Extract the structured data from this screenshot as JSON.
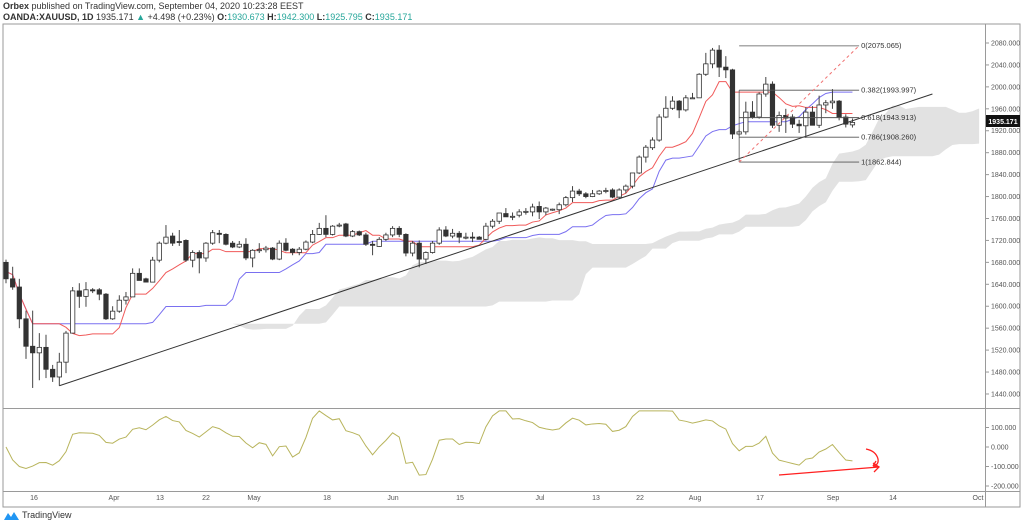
{
  "header": {
    "publisher": "Orbex",
    "published_text": "published on TradingView.com, September 04, 2020 10:23:28 EEST",
    "symbol": "OANDA:XAUUSD, 1D",
    "last": "1935.171",
    "change_arrow": "▲",
    "change": "+4.498 (+0.23%)",
    "o_label": "O:",
    "o": "1930.673",
    "h_label": "H:",
    "h": "1942.300",
    "l_label": "L:",
    "l": "1925.795",
    "c_label": "C:",
    "c": "1935.171"
  },
  "footer": {
    "brand": "TradingView",
    "logo_icon": "tradingview-logo-icon"
  },
  "colors": {
    "up_candle": "#ffffff",
    "down_candle": "#333333",
    "tenkan": "#f05a5a",
    "kijun": "#7a70f0",
    "cloud": "#e2e2e2",
    "oscillator": "#b8b45c",
    "annotation": "#ff2020",
    "change_up": "#26a69a"
  },
  "chart_data": {
    "type": "candlestick",
    "title": "",
    "price_badge": "1935.171",
    "y_ticks": [
      "2080.000",
      "2040.000",
      "2000.000",
      "1960.000",
      "1920.000",
      "1880.000",
      "1840.000",
      "1800.000",
      "1760.000",
      "1720.000",
      "1680.000",
      "1640.000",
      "1600.000",
      "1560.000",
      "1520.000",
      "1480.000",
      "1440.000"
    ],
    "ylim": [
      1440,
      2080
    ],
    "x_ticks": [
      "16",
      "Apr",
      "13",
      "22",
      "May",
      "18",
      "Jun",
      "15",
      "Jul",
      "13",
      "22",
      "Aug",
      "17",
      "Sep",
      "14",
      "Oct"
    ],
    "ohlc_fields": [
      "open",
      "high",
      "low",
      "close"
    ],
    "candles": [
      [
        1680,
        1685,
        1642,
        1650
      ],
      [
        1650,
        1672,
        1630,
        1635
      ],
      [
        1635,
        1650,
        1560,
        1577
      ],
      [
        1577,
        1592,
        1504,
        1527
      ],
      [
        1527,
        1592,
        1451,
        1515
      ],
      [
        1515,
        1551,
        1465,
        1525
      ],
      [
        1525,
        1548,
        1469,
        1485
      ],
      [
        1485,
        1493,
        1462,
        1471
      ],
      [
        1471,
        1515,
        1455,
        1498
      ],
      [
        1498,
        1555,
        1478,
        1551
      ],
      [
        1551,
        1635,
        1551,
        1628
      ],
      [
        1628,
        1642,
        1597,
        1618
      ],
      [
        1618,
        1644,
        1599,
        1630
      ],
      [
        1630,
        1633,
        1624,
        1628
      ],
      [
        1630,
        1633,
        1611,
        1622
      ],
      [
        1622,
        1624,
        1575,
        1577
      ],
      [
        1577,
        1600,
        1575,
        1591
      ],
      [
        1591,
        1620,
        1588,
        1611
      ],
      [
        1611,
        1626,
        1603,
        1617
      ],
      [
        1617,
        1669,
        1617,
        1660
      ],
      [
        1660,
        1669,
        1647,
        1647
      ],
      [
        1650,
        1652,
        1644,
        1644
      ],
      [
        1644,
        1690,
        1644,
        1684
      ],
      [
        1684,
        1718,
        1680,
        1715
      ],
      [
        1715,
        1748,
        1713,
        1726
      ],
      [
        1728,
        1734,
        1710,
        1715
      ],
      [
        1718,
        1739,
        1710,
        1717
      ],
      [
        1720,
        1722,
        1681,
        1684
      ],
      [
        1684,
        1702,
        1671,
        1698
      ],
      [
        1698,
        1702,
        1660,
        1688
      ],
      [
        1688,
        1717,
        1681,
        1715
      ],
      [
        1715,
        1739,
        1712,
        1734
      ],
      [
        1733,
        1739,
        1715,
        1731
      ],
      [
        1731,
        1733,
        1711,
        1713
      ],
      [
        1715,
        1719,
        1706,
        1708
      ],
      [
        1708,
        1719,
        1706,
        1713
      ],
      [
        1713,
        1724,
        1684,
        1688
      ],
      [
        1688,
        1704,
        1671,
        1702
      ],
      [
        1702,
        1715,
        1697,
        1703
      ],
      [
        1703,
        1710,
        1698,
        1706
      ],
      [
        1706,
        1708,
        1684,
        1686
      ],
      [
        1686,
        1720,
        1684,
        1715
      ],
      [
        1715,
        1724,
        1700,
        1702
      ],
      [
        1704,
        1706,
        1693,
        1698
      ],
      [
        1698,
        1708,
        1693,
        1704
      ],
      [
        1704,
        1720,
        1702,
        1717
      ],
      [
        1717,
        1739,
        1715,
        1731
      ],
      [
        1731,
        1752,
        1730,
        1742
      ],
      [
        1742,
        1766,
        1726,
        1731
      ],
      [
        1731,
        1748,
        1729,
        1746
      ],
      [
        1747,
        1752,
        1744,
        1748
      ],
      [
        1750,
        1752,
        1726,
        1728
      ],
      [
        1728,
        1739,
        1726,
        1736
      ],
      [
        1736,
        1738,
        1728,
        1730
      ],
      [
        1730,
        1734,
        1710,
        1713
      ],
      [
        1713,
        1719,
        1693,
        1711
      ],
      [
        1709,
        1726,
        1708,
        1722
      ],
      [
        1722,
        1734,
        1719,
        1730
      ],
      [
        1730,
        1746,
        1726,
        1742
      ],
      [
        1742,
        1746,
        1726,
        1731
      ],
      [
        1731,
        1733,
        1691,
        1697
      ],
      [
        1697,
        1719,
        1691,
        1715
      ],
      [
        1715,
        1720,
        1671,
        1686
      ],
      [
        1686,
        1700,
        1677,
        1698
      ],
      [
        1698,
        1719,
        1696,
        1715
      ],
      [
        1715,
        1744,
        1712,
        1739
      ],
      [
        1739,
        1746,
        1726,
        1728
      ],
      [
        1728,
        1741,
        1724,
        1733
      ],
      [
        1733,
        1737,
        1715,
        1726
      ],
      [
        1726,
        1734,
        1722,
        1726
      ],
      [
        1726,
        1735,
        1717,
        1725
      ],
      [
        1726,
        1728,
        1722,
        1722
      ],
      [
        1722,
        1752,
        1720,
        1746
      ],
      [
        1746,
        1759,
        1742,
        1755
      ],
      [
        1755,
        1770,
        1750,
        1770
      ],
      [
        1769,
        1779,
        1763,
        1763
      ],
      [
        1764,
        1771,
        1757,
        1764
      ],
      [
        1766,
        1777,
        1762,
        1772
      ],
      [
        1772,
        1779,
        1767,
        1773
      ],
      [
        1772,
        1787,
        1764,
        1781
      ],
      [
        1782,
        1791,
        1759,
        1772
      ],
      [
        1772,
        1781,
        1766,
        1779
      ],
      [
        1776,
        1778,
        1774,
        1777
      ],
      [
        1776,
        1789,
        1768,
        1785
      ],
      [
        1785,
        1801,
        1782,
        1798
      ],
      [
        1798,
        1819,
        1790,
        1810
      ],
      [
        1810,
        1814,
        1801,
        1805
      ],
      [
        1805,
        1808,
        1797,
        1800
      ],
      [
        1800,
        1812,
        1799,
        1805
      ],
      [
        1805,
        1812,
        1803,
        1810
      ],
      [
        1810,
        1816,
        1806,
        1811
      ],
      [
        1812,
        1815,
        1797,
        1799
      ],
      [
        1799,
        1815,
        1797,
        1812
      ],
      [
        1812,
        1822,
        1806,
        1819
      ],
      [
        1819,
        1843,
        1815,
        1843
      ],
      [
        1843,
        1875,
        1841,
        1872
      ],
      [
        1872,
        1894,
        1862,
        1890
      ],
      [
        1889,
        1908,
        1885,
        1903
      ],
      [
        1903,
        1950,
        1900,
        1945
      ],
      [
        1945,
        1983,
        1943,
        1961
      ],
      [
        1961,
        1983,
        1958,
        1974
      ],
      [
        1974,
        1976,
        1943,
        1958
      ],
      [
        1958,
        1985,
        1955,
        1980
      ],
      [
        1980,
        1989,
        1978,
        1980
      ],
      [
        1980,
        2025,
        1980,
        2023
      ],
      [
        2023,
        2062,
        2020,
        2042
      ],
      [
        2042,
        2071,
        2034,
        2067
      ],
      [
        2067,
        2076,
        2018,
        2036
      ],
      [
        2036,
        2056,
        2016,
        2031
      ],
      [
        2031,
        2033,
        1905,
        1914
      ],
      [
        1914,
        1922,
        1911,
        1918
      ],
      [
        1918,
        1973,
        1913,
        1954
      ],
      [
        1954,
        1974,
        1942,
        1945
      ],
      [
        1945,
        1990,
        1942,
        1987
      ],
      [
        1987,
        2018,
        1982,
        2005
      ],
      [
        2005,
        2010,
        1925,
        1930
      ],
      [
        1930,
        1955,
        1918,
        1948
      ],
      [
        1948,
        1960,
        1916,
        1943
      ],
      [
        1945,
        1950,
        1925,
        1932
      ],
      [
        1932,
        1940,
        1916,
        1929
      ],
      [
        1929,
        1963,
        1907,
        1954
      ],
      [
        1954,
        1965,
        1935,
        1930
      ],
      [
        1930,
        1984,
        1925,
        1967
      ],
      [
        1967,
        1976,
        1952,
        1971
      ],
      [
        1971,
        1996,
        1960,
        1974
      ],
      [
        1974,
        1976,
        1939,
        1945
      ],
      [
        1945,
        1950,
        1926,
        1932
      ],
      [
        1930.673,
        1942.3,
        1925.795,
        1935.171
      ]
    ],
    "indicators": [
      "ichimoku-cloud",
      "tenkan-line",
      "kijun-line"
    ],
    "drawings": {
      "trendline": {
        "from": {
          "bar": 8,
          "price": 1455
        },
        "to": {
          "bar": 139,
          "price": 1987
        }
      },
      "fib_retracement": {
        "from_bar": 110,
        "to_bar": 128,
        "levels": [
          {
            "ratio": 0,
            "price": 2075.065,
            "label": "0(2075.065)"
          },
          {
            "ratio": 0.382,
            "price": 1993.997,
            "label": "0.382(1993.997)"
          },
          {
            "ratio": 0.618,
            "price": 1943.913,
            "label": "0.618(1943.913)"
          },
          {
            "ratio": 0.786,
            "price": 1908.26,
            "label": "0.786(1908.260)"
          },
          {
            "ratio": 1,
            "price": 1862.844,
            "label": "1(1862.844)"
          }
        ]
      }
    },
    "oscillator": {
      "y_ticks": [
        "100.000",
        "0.000",
        "-100.000",
        "-200.000"
      ],
      "ylim": [
        -210,
        190
      ],
      "annotations": [
        "red-curved-arrow-down",
        "red-rising-arrow"
      ]
    },
    "grid": false,
    "legend": "none"
  }
}
